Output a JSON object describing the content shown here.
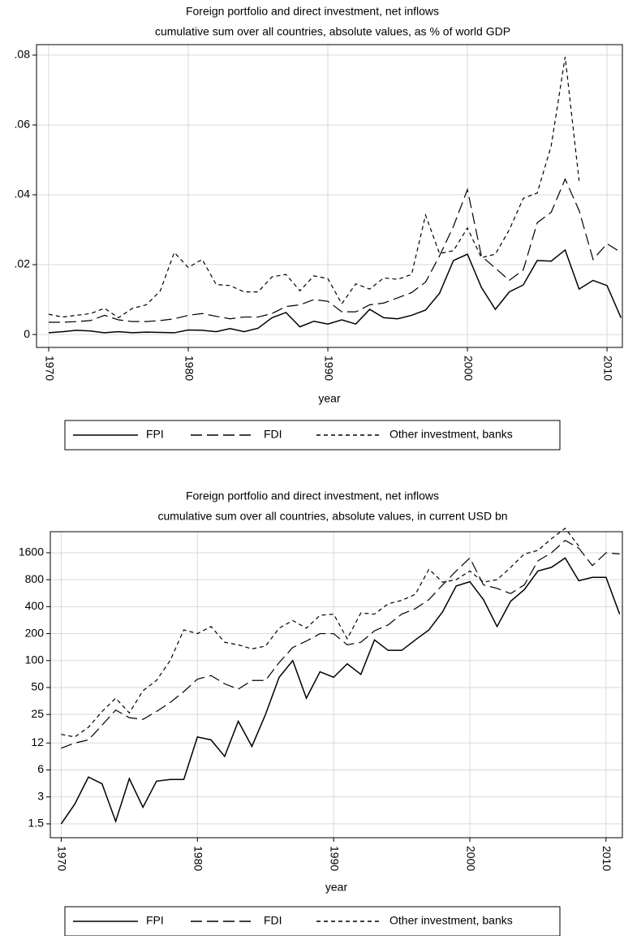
{
  "chart_data": [
    {
      "type": "line",
      "title": "Foreign portfolio and direct investment, net inflows",
      "subtitle": "cumulative sum over all countries, absolute values, as % of world GDP",
      "xlabel": "year",
      "x": [
        1970,
        1971,
        1972,
        1973,
        1974,
        1975,
        1976,
        1977,
        1978,
        1979,
        1980,
        1981,
        1982,
        1983,
        1984,
        1985,
        1986,
        1987,
        1988,
        1989,
        1990,
        1991,
        1992,
        1993,
        1994,
        1995,
        1996,
        1997,
        1998,
        1999,
        2000,
        2001,
        2002,
        2003,
        2004,
        2005,
        2006,
        2007,
        2008,
        2009,
        2010,
        2011
      ],
      "xlim": [
        1969.13,
        2011.1
      ],
      "xticks": [
        1970,
        1980,
        1990,
        2000,
        2010
      ],
      "ylim": [
        -0.0037,
        0.083
      ],
      "yticks": [
        0,
        {
          "value": 0.02,
          "label": ".02"
        },
        {
          "value": 0.04,
          "label": ".04"
        },
        {
          "value": 0.06,
          "label": ".06"
        },
        {
          "value": 0.08,
          "label": ".08"
        }
      ],
      "log_scale": false,
      "grid": true,
      "legend": "bottom",
      "series": [
        {
          "name": "FPI",
          "color": "#000000",
          "dash": "solid",
          "values": [
            0.0005,
            0.0008,
            0.0012,
            0.001,
            0.0005,
            0.0008,
            0.0005,
            0.0007,
            0.0006,
            0.0005,
            0.0013,
            0.0012,
            0.0008,
            0.0017,
            0.0008,
            0.0018,
            0.0048,
            0.0063,
            0.0022,
            0.0038,
            0.003,
            0.0042,
            0.003,
            0.0072,
            0.0048,
            0.0045,
            0.0055,
            0.007,
            0.0118,
            0.0212,
            0.023,
            0.0135,
            0.0072,
            0.0122,
            0.0142,
            0.0212,
            0.021,
            0.0242,
            0.013,
            0.0155,
            0.014,
            0.0048
          ]
        },
        {
          "name": "FDI",
          "color": "#000000",
          "dash": "long",
          "values": [
            0.0035,
            0.0035,
            0.0037,
            0.004,
            0.0055,
            0.0042,
            0.0037,
            0.0037,
            0.004,
            0.0045,
            0.0055,
            0.006,
            0.0052,
            0.0045,
            0.005,
            0.005,
            0.006,
            0.008,
            0.0085,
            0.01,
            0.0095,
            0.0065,
            0.0065,
            0.0085,
            0.009,
            0.0105,
            0.012,
            0.015,
            0.0225,
            0.031,
            0.0415,
            0.0225,
            0.019,
            0.0155,
            0.0185,
            0.032,
            0.035,
            0.0445,
            0.0355,
            0.0215,
            0.026,
            0.0235
          ]
        },
        {
          "name": "Other investment, banks",
          "color": "#000000",
          "dash": "short",
          "values": [
            0.0058,
            0.005,
            0.0055,
            0.006,
            0.0075,
            0.0048,
            0.0075,
            0.0085,
            0.0125,
            0.0235,
            0.0192,
            0.0215,
            0.0143,
            0.014,
            0.0122,
            0.0122,
            0.0165,
            0.0172,
            0.0125,
            0.0168,
            0.016,
            0.0088,
            0.0145,
            0.013,
            0.0162,
            0.0158,
            0.0172,
            0.0342,
            0.0232,
            0.024,
            0.0305,
            0.022,
            0.023,
            0.03,
            0.039,
            0.0405,
            0.054,
            0.0795,
            0.044,
            null,
            null,
            null
          ]
        }
      ]
    },
    {
      "type": "line",
      "title": "Foreign portfolio and direct investment, net inflows",
      "subtitle": "cumulative sum over all countries, absolute values, in current USD bn",
      "xlabel": "year",
      "x": [
        1970,
        1971,
        1972,
        1973,
        1974,
        1975,
        1976,
        1977,
        1978,
        1979,
        1980,
        1981,
        1982,
        1983,
        1984,
        1985,
        1986,
        1987,
        1988,
        1989,
        1990,
        1991,
        1992,
        1993,
        1994,
        1995,
        1996,
        1997,
        1998,
        1999,
        2000,
        2001,
        2002,
        2003,
        2004,
        2005,
        2006,
        2007,
        2008,
        2009,
        2010,
        2011
      ],
      "xlim": [
        1969.2,
        2011.2
      ],
      "xticks": [
        1970,
        1980,
        1990,
        2000,
        2010
      ],
      "ylim": [
        1.05,
        2750
      ],
      "yticks": [
        1.5,
        3,
        6,
        12,
        25,
        50,
        100,
        200,
        400,
        800,
        1600
      ],
      "log_scale": true,
      "grid": true,
      "legend": "bottom",
      "series": [
        {
          "name": "FPI",
          "color": "#000000",
          "dash": "solid",
          "values": [
            1.5,
            2.5,
            5,
            4.2,
            1.6,
            4.8,
            2.3,
            4.5,
            4.7,
            4.7,
            14,
            13,
            8.5,
            21,
            11,
            25,
            65,
            100,
            38,
            75,
            65,
            92,
            70,
            170,
            130,
            130,
            170,
            220,
            350,
            680,
            760,
            480,
            240,
            460,
            620,
            1000,
            1100,
            1400,
            780,
            850,
            850,
            330
          ]
        },
        {
          "name": "FDI",
          "color": "#000000",
          "dash": "long",
          "values": [
            10.5,
            12,
            13,
            19,
            28,
            23,
            22,
            27,
            34,
            45,
            62,
            68,
            55,
            48,
            60,
            60,
            95,
            140,
            165,
            200,
            200,
            150,
            160,
            215,
            250,
            330,
            380,
            480,
            700,
            1000,
            1400,
            700,
            640,
            560,
            700,
            1300,
            1600,
            2200,
            1800,
            1150,
            1600,
            1550
          ]
        },
        {
          "name": "Other investment, banks",
          "color": "#000000",
          "dash": "short",
          "values": [
            15,
            14,
            18,
            27,
            38,
            26,
            46,
            60,
            100,
            220,
            200,
            240,
            160,
            150,
            135,
            145,
            230,
            280,
            230,
            320,
            330,
            175,
            340,
            330,
            430,
            470,
            550,
            1050,
            750,
            800,
            1000,
            750,
            800,
            1100,
            1550,
            1700,
            2300,
            3000,
            1900,
            null,
            null,
            null
          ]
        }
      ]
    }
  ]
}
